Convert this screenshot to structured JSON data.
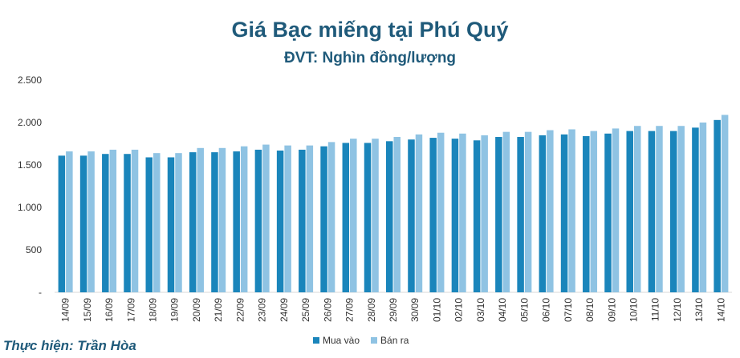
{
  "chart_data": {
    "type": "bar",
    "title": "Giá Bạc miếng tại Phú Quý",
    "subtitle": "ĐVT: Nghìn đồng/lượng",
    "categories": [
      "14/09",
      "15/09",
      "16/09",
      "17/09",
      "18/09",
      "19/09",
      "20/09",
      "21/09",
      "22/09",
      "23/09",
      "24/09",
      "25/09",
      "26/09",
      "27/09",
      "28/09",
      "29/09",
      "30/09",
      "01/10",
      "02/10",
      "03/10",
      "04/10",
      "05/10",
      "06/10",
      "07/10",
      "08/10",
      "09/10",
      "10/10",
      "11/10",
      "12/10",
      "13/10",
      "14/10"
    ],
    "series": [
      {
        "name": "Mua vào",
        "color": "#1a85bb",
        "values": [
          1610,
          1610,
          1630,
          1630,
          1590,
          1590,
          1650,
          1650,
          1660,
          1680,
          1670,
          1680,
          1720,
          1760,
          1760,
          1780,
          1800,
          1820,
          1810,
          1790,
          1830,
          1830,
          1850,
          1860,
          1840,
          1870,
          1900,
          1900,
          1900,
          1940,
          2030
        ]
      },
      {
        "name": "Bán ra",
        "color": "#8fc3e3",
        "values": [
          1660,
          1660,
          1680,
          1680,
          1640,
          1640,
          1700,
          1700,
          1720,
          1740,
          1730,
          1730,
          1770,
          1810,
          1810,
          1830,
          1860,
          1880,
          1870,
          1850,
          1890,
          1890,
          1910,
          1920,
          1900,
          1930,
          1960,
          1960,
          1960,
          2000,
          2090
        ]
      }
    ],
    "yticks": [
      "-",
      "500",
      "1.000",
      "1.500",
      "2.000",
      "2.500"
    ],
    "ylim": [
      0,
      2500
    ],
    "legend_position": "bottom"
  },
  "credit": "Thực hiện: Trần Hòa"
}
